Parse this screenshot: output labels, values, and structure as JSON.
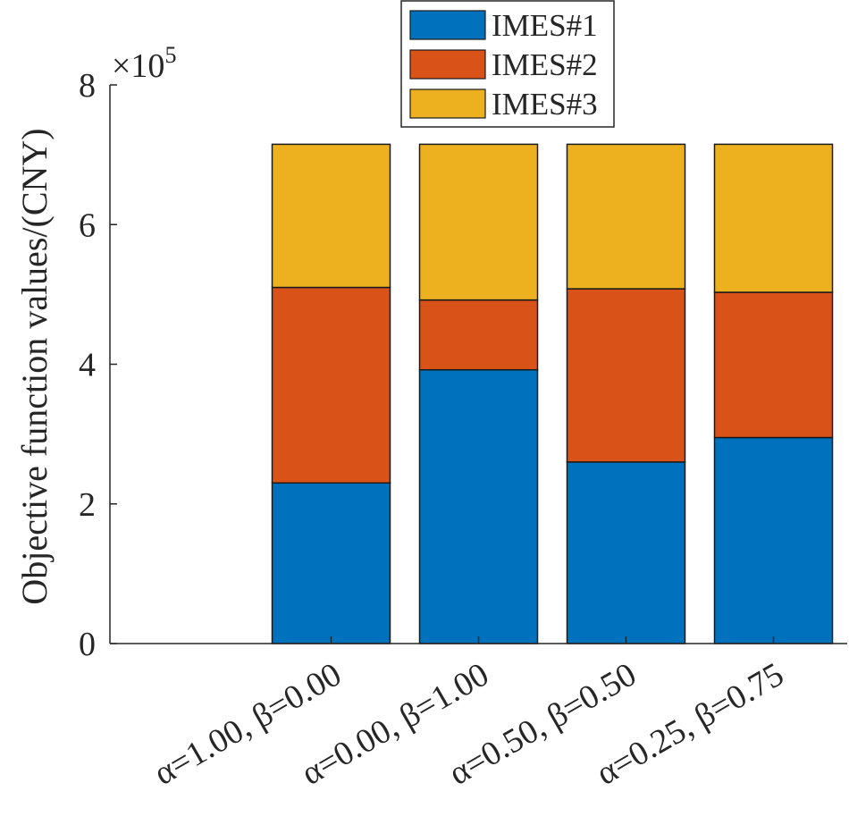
{
  "chart_data": {
    "type": "bar",
    "stacked": true,
    "categories": [
      {
        "label": "α=1.00, β=0.00"
      },
      {
        "label": "α=0.00, β=1.00"
      },
      {
        "label": "α=0.50, β=0.50"
      },
      {
        "label": "α=0.25, β=0.75"
      }
    ],
    "x_slots": 5,
    "first_category_slot": 2,
    "series": [
      {
        "name": "IMES#1",
        "color": "#0072BD",
        "values": [
          2.3,
          3.92,
          2.6,
          2.95
        ]
      },
      {
        "name": "IMES#2",
        "color": "#D95319",
        "values": [
          2.8,
          1.0,
          2.48,
          2.08
        ]
      },
      {
        "name": "IMES#3",
        "color": "#EDB120",
        "values": [
          2.05,
          2.23,
          2.07,
          2.12
        ]
      }
    ],
    "ylabel": "Objective function values/(CNY)",
    "y_multiplier": "×10",
    "y_multiplier_exp": "5",
    "ylim": [
      0,
      8
    ],
    "yticks": [
      0,
      2,
      4,
      6,
      8
    ],
    "grid": false,
    "legend_position": "top"
  }
}
